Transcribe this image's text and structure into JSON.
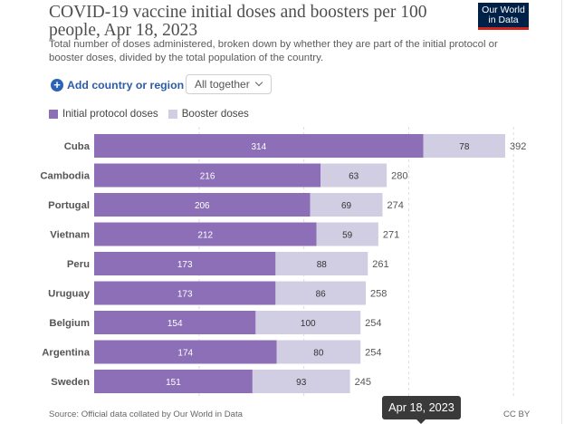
{
  "header": {
    "title": "COVID-19 vaccine initial doses and boosters per 100 people, Apr 18, 2023",
    "subtitle": "Total number of doses administered, broken down by whether they are part of the initial protocol or booster doses, divided by the total population of the country.",
    "logo_line1": "Our World",
    "logo_line2": "in Data"
  },
  "controls": {
    "add_country_label": "Add country or region",
    "add_icon": "plus-circle-icon",
    "dropdown_label": "All together",
    "dropdown_icon": "chevron-down-icon"
  },
  "legend": [
    {
      "label": "Initial protocol doses",
      "color": "#8c6fb6"
    },
    {
      "label": "Booster doses",
      "color": "#d1cde3"
    }
  ],
  "chart_data": {
    "type": "bar",
    "orientation": "horizontal",
    "stacked": true,
    "title": "COVID-19 vaccine initial doses and boosters per 100 people, Apr 18, 2023",
    "categories": [
      "Cuba",
      "Cambodia",
      "Portugal",
      "Vietnam",
      "Peru",
      "Uruguay",
      "Belgium",
      "Argentina",
      "Sweden"
    ],
    "series": [
      {
        "name": "Initial protocol doses",
        "color": "#8c6fb6",
        "values": [
          314,
          216,
          206,
          212,
          173,
          173,
          154,
          174,
          151
        ]
      },
      {
        "name": "Booster doses",
        "color": "#d1cde3",
        "values": [
          78,
          63,
          69,
          59,
          88,
          86,
          100,
          80,
          93
        ]
      }
    ],
    "totals": [
      392,
      280,
      274,
      271,
      261,
      258,
      254,
      254,
      245
    ],
    "xlim": [
      0,
      392
    ],
    "grid": true,
    "legend_position": "top-left"
  },
  "footer": {
    "source": "Source: Official data collated by Our World in Data",
    "license": "CC BY",
    "timeline_tooltip": "Apr 18, 2023"
  }
}
